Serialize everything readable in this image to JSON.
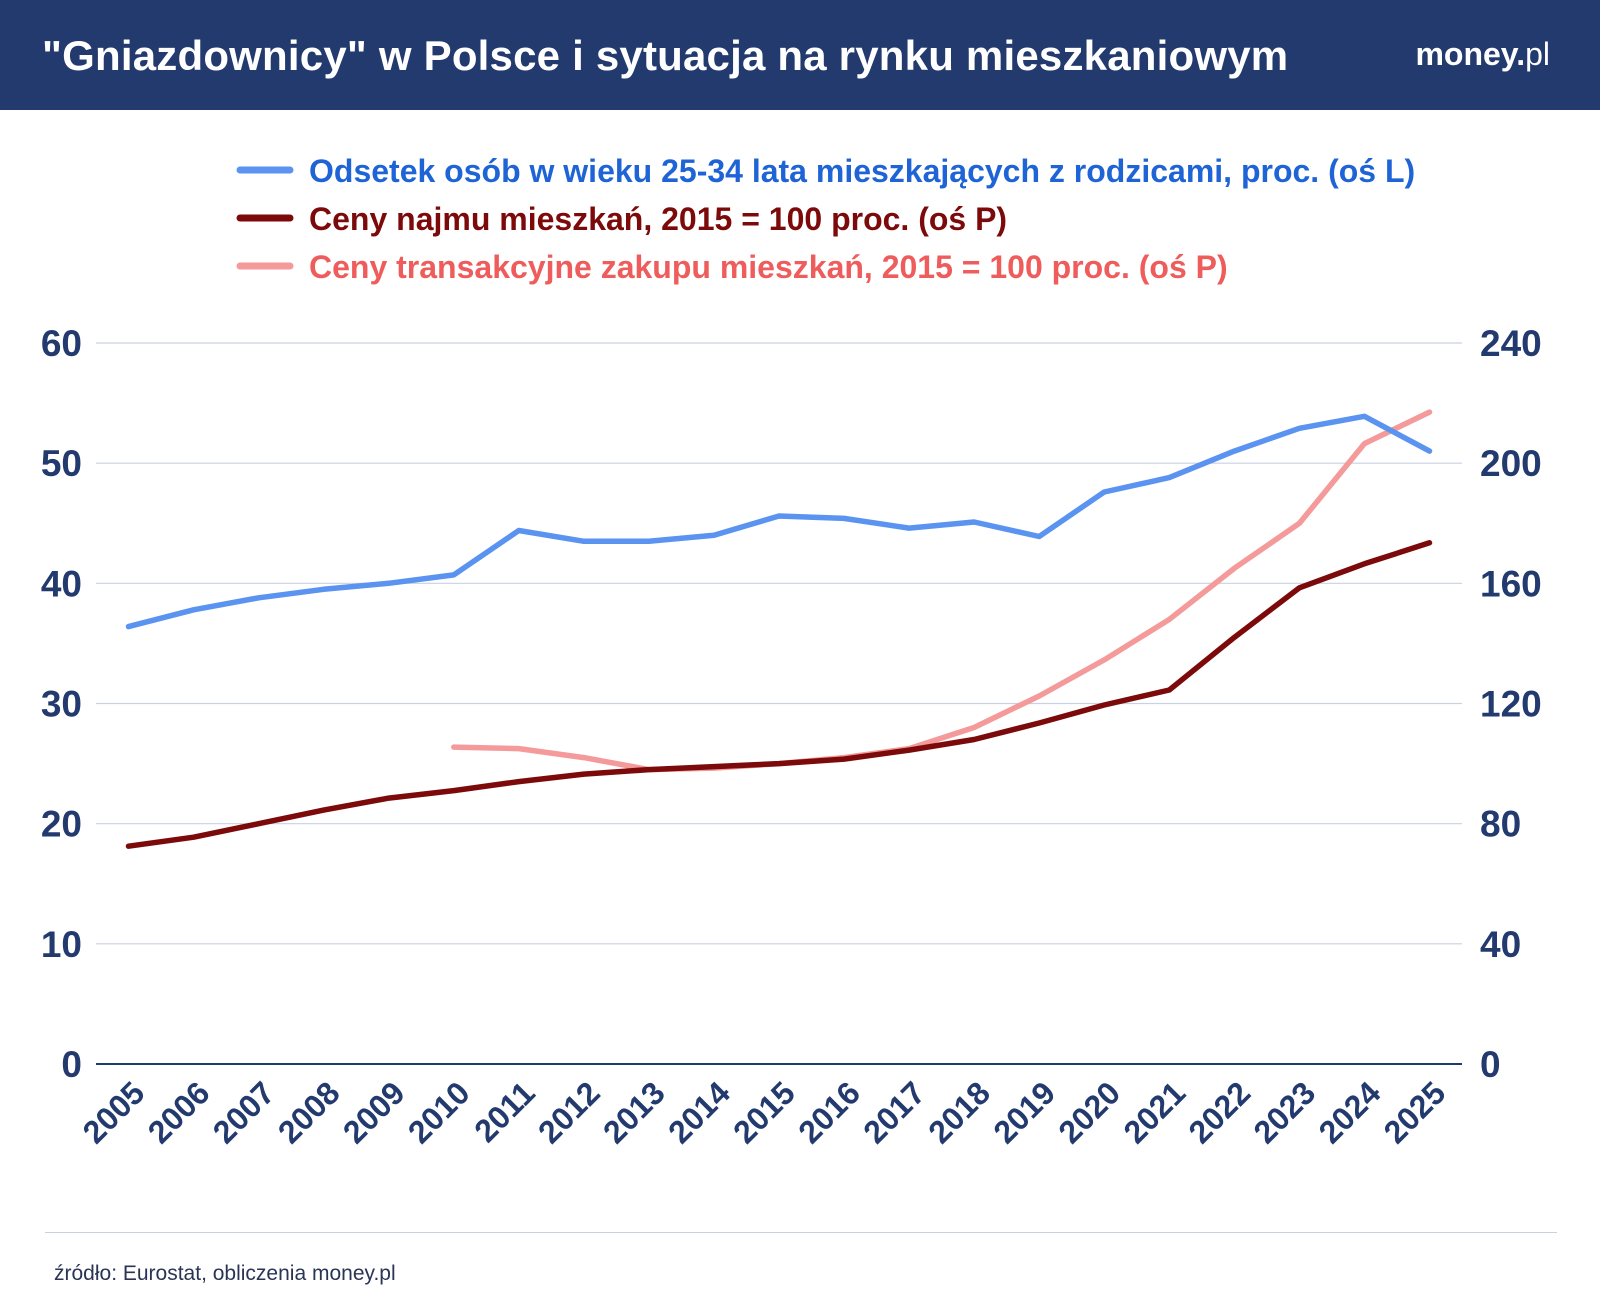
{
  "header": {
    "title": "\"Gniazdownicy\" w Polsce i sytuacja na rynku mieszkaniowym",
    "brand_main": "money.",
    "brand_suffix": "pl"
  },
  "footer": {
    "source": "źródło: Eurostat, obliczenia money.pl"
  },
  "colors": {
    "header_bg": "#233a6e",
    "axis_text": "#233a6e",
    "grid": "#c9d1e3",
    "series_blue": "#5b93f0",
    "series_darkred": "#7c0a0a",
    "series_pink": "#f59a9a"
  },
  "chart_data": {
    "type": "line",
    "x": [
      "2005",
      "2006",
      "2007",
      "2008",
      "2009",
      "2010",
      "2011",
      "2012",
      "2013",
      "2014",
      "2015",
      "2016",
      "2017",
      "2018",
      "2019",
      "2020",
      "2021",
      "2022",
      "2023",
      "2024",
      "2025"
    ],
    "y_left": {
      "ticks": [
        "0",
        "10",
        "20",
        "30",
        "40",
        "50",
        "60"
      ],
      "lim": [
        0,
        60
      ]
    },
    "y_right": {
      "ticks": [
        "0",
        "40",
        "80",
        "120",
        "160",
        "200",
        "240"
      ],
      "lim": [
        0,
        240
      ]
    },
    "grid": true,
    "legend_position": "top",
    "series": [
      {
        "name": "Odsetek osób w wieku 25-34 lata mieszkających z rodzicami, proc. (oś L)",
        "axis": "left",
        "color": "#5b93f0",
        "legend_color": "#1f64d6",
        "values": [
          36.4,
          37.8,
          38.8,
          39.5,
          40.0,
          40.7,
          44.4,
          43.5,
          43.5,
          44.0,
          45.6,
          45.4,
          44.6,
          45.1,
          43.9,
          47.6,
          48.8,
          51.0,
          52.9,
          53.9,
          51.0
        ]
      },
      {
        "name": "Ceny najmu mieszkań, 2015 = 100 proc. (oś P)",
        "axis": "right",
        "color": "#7c0a0a",
        "legend_color": "#7c0a0a",
        "values": [
          72.5,
          75.5,
          80,
          84.5,
          88.5,
          91,
          94,
          96.5,
          98,
          99,
          100,
          101.5,
          104.5,
          108,
          113.5,
          119.5,
          124.5,
          142,
          158.5,
          166.5,
          173.5
        ]
      },
      {
        "name": "Ceny transakcyjne zakupu mieszkań, 2015 = 100 proc. (oś P)",
        "axis": "right",
        "color": "#f59a9a",
        "legend_color": "#ef5c5c",
        "values": [
          null,
          null,
          null,
          null,
          null,
          105.5,
          105,
          102,
          98,
          98.5,
          100,
          102,
          105,
          112,
          122.5,
          134.5,
          148,
          165,
          180,
          206.5,
          217
        ]
      }
    ]
  }
}
